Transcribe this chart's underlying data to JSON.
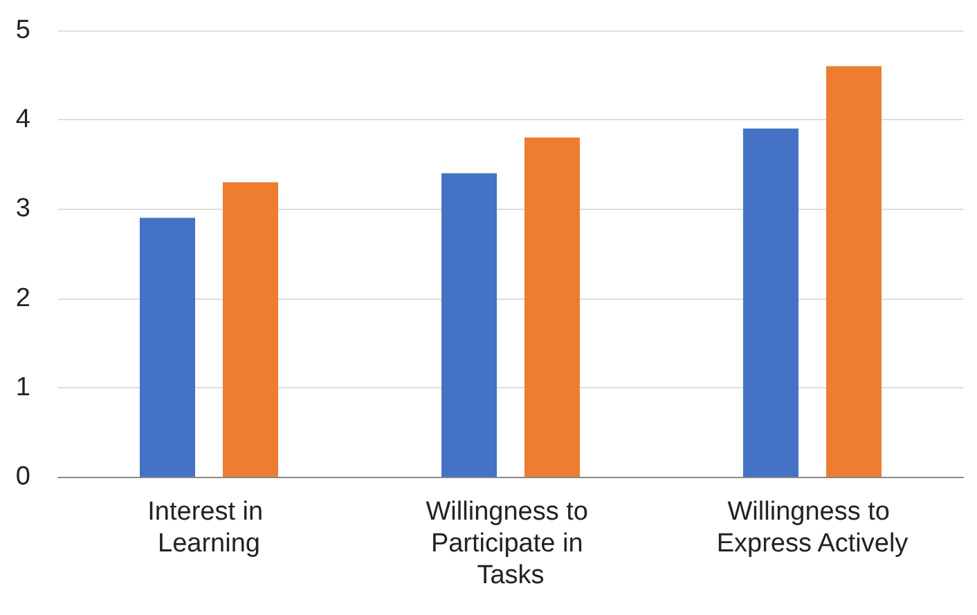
{
  "chart_data": {
    "type": "bar",
    "categories": [
      "Interest in Learning",
      "Willingness to Participate in Tasks",
      "Willingness to Express Actively"
    ],
    "series": [
      {
        "color": "#4472c4",
        "values": [
          2.9,
          3.4,
          3.9
        ]
      },
      {
        "color": "#ed7d31",
        "values": [
          3.3,
          3.8,
          4.6
        ]
      }
    ],
    "ylim": [
      0,
      5
    ],
    "yticks": [
      0,
      1,
      2,
      3,
      4,
      5
    ],
    "grid": "y"
  }
}
